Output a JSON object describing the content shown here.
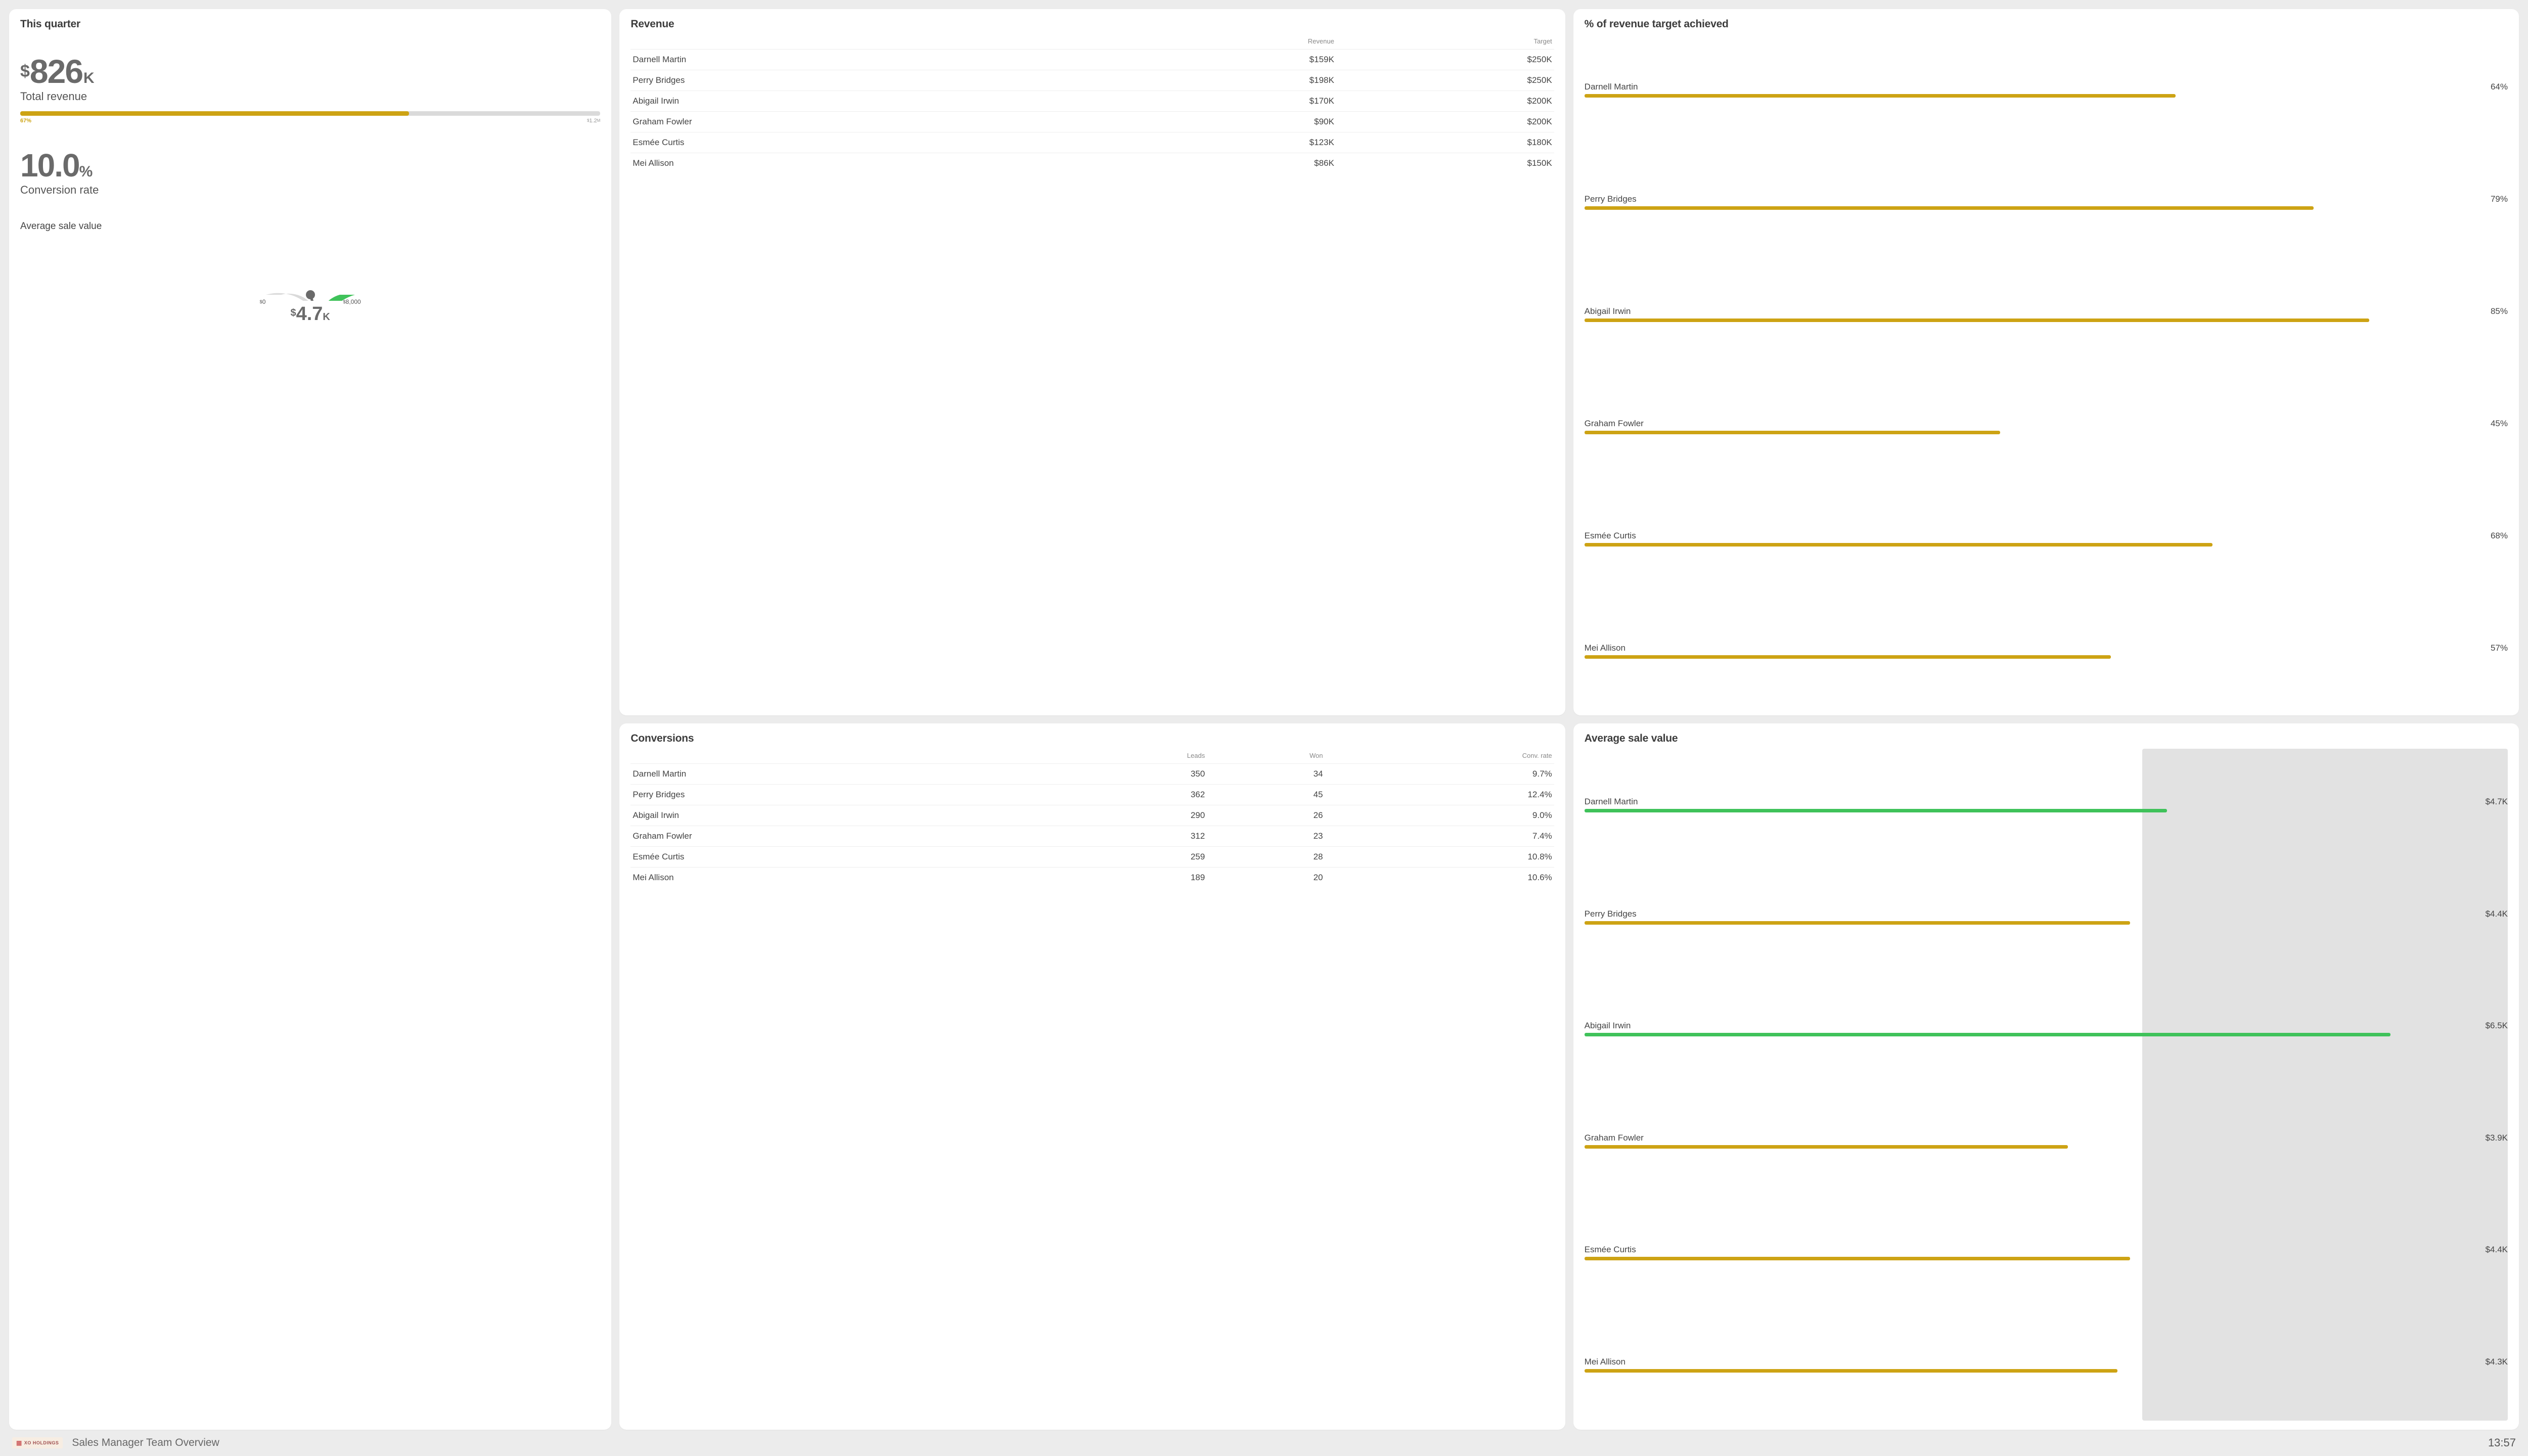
{
  "colors": {
    "gold": "#cda314",
    "green": "#3fc25a",
    "track": "#dadada",
    "needle": "#6a6a6a"
  },
  "summary": {
    "title": "This quarter",
    "total_revenue": {
      "currency": "$",
      "value": "826",
      "suffix": "K",
      "label": "Total revenue",
      "progress_pct": 67,
      "progress_pct_label": "67%",
      "target_label_prefix": "$",
      "target_label": "1.2",
      "target_label_suffix": "M"
    },
    "conversion": {
      "value": "10.0",
      "suffix": "%",
      "label": "Conversion rate"
    },
    "avg_sale": {
      "title": "Average sale value",
      "min_label": "0",
      "max_label": "8,000",
      "min": 0,
      "max": 8000,
      "value": 4700,
      "value_display": "4.7",
      "value_suffix": "K",
      "currency": "$"
    }
  },
  "revenue": {
    "title": "Revenue",
    "columns": [
      "",
      "Revenue",
      "Target"
    ],
    "rows": [
      {
        "name": "Darnell Martin",
        "revenue": "$159K",
        "target": "$250K"
      },
      {
        "name": "Perry Bridges",
        "revenue": "$198K",
        "target": "$250K"
      },
      {
        "name": "Abigail Irwin",
        "revenue": "$170K",
        "target": "$200K"
      },
      {
        "name": "Graham Fowler",
        "revenue": "$90K",
        "target": "$200K"
      },
      {
        "name": "Esmée Curtis",
        "revenue": "$123K",
        "target": "$180K"
      },
      {
        "name": "Mei Allison",
        "revenue": "$86K",
        "target": "$150K"
      }
    ]
  },
  "target_achieved": {
    "title": "% of revenue target achieved",
    "bar_color": "#cda314",
    "rows": [
      {
        "name": "Darnell Martin",
        "pct": 64,
        "label": "64%"
      },
      {
        "name": "Perry Bridges",
        "pct": 79,
        "label": "79%"
      },
      {
        "name": "Abigail Irwin",
        "pct": 85,
        "label": "85%"
      },
      {
        "name": "Graham Fowler",
        "pct": 45,
        "label": "45%"
      },
      {
        "name": "Esmée Curtis",
        "pct": 68,
        "label": "68%"
      },
      {
        "name": "Mei Allison",
        "pct": 57,
        "label": "57%"
      }
    ]
  },
  "conversions": {
    "title": "Conversions",
    "columns": [
      "",
      "Leads",
      "Won",
      "Conv. rate"
    ],
    "rows": [
      {
        "name": "Darnell Martin",
        "leads": "350",
        "won": "34",
        "rate": "9.7%"
      },
      {
        "name": "Perry Bridges",
        "leads": "362",
        "won": "45",
        "rate": "12.4%"
      },
      {
        "name": "Abigail Irwin",
        "leads": "290",
        "won": "26",
        "rate": "9.0%"
      },
      {
        "name": "Graham Fowler",
        "leads": "312",
        "won": "23",
        "rate": "7.4%"
      },
      {
        "name": "Esmée Curtis",
        "leads": "259",
        "won": "28",
        "rate": "10.8%"
      },
      {
        "name": "Mei Allison",
        "leads": "189",
        "won": "20",
        "rate": "10.6%"
      }
    ]
  },
  "avg_sale_panel": {
    "title": "Average sale value",
    "max_value": 7000,
    "threshold_value": 4500,
    "bar_width_max_pct": 94,
    "rows": [
      {
        "name": "Darnell Martin",
        "value": 4700,
        "label": "$4.7K",
        "color": "#3fc25a"
      },
      {
        "name": "Perry Bridges",
        "value": 4400,
        "label": "$4.4K",
        "color": "#cda314"
      },
      {
        "name": "Abigail Irwin",
        "value": 6500,
        "label": "$6.5K",
        "color": "#3fc25a"
      },
      {
        "name": "Graham Fowler",
        "value": 3900,
        "label": "$3.9K",
        "color": "#cda314"
      },
      {
        "name": "Esmée Curtis",
        "value": 4400,
        "label": "$4.4K",
        "color": "#cda314"
      },
      {
        "name": "Mei Allison",
        "value": 4300,
        "label": "$4.3K",
        "color": "#cda314"
      }
    ]
  },
  "footer": {
    "logo_text": "XO HOLDINGS",
    "title": "Sales Manager Team Overview",
    "time": "13:57"
  }
}
